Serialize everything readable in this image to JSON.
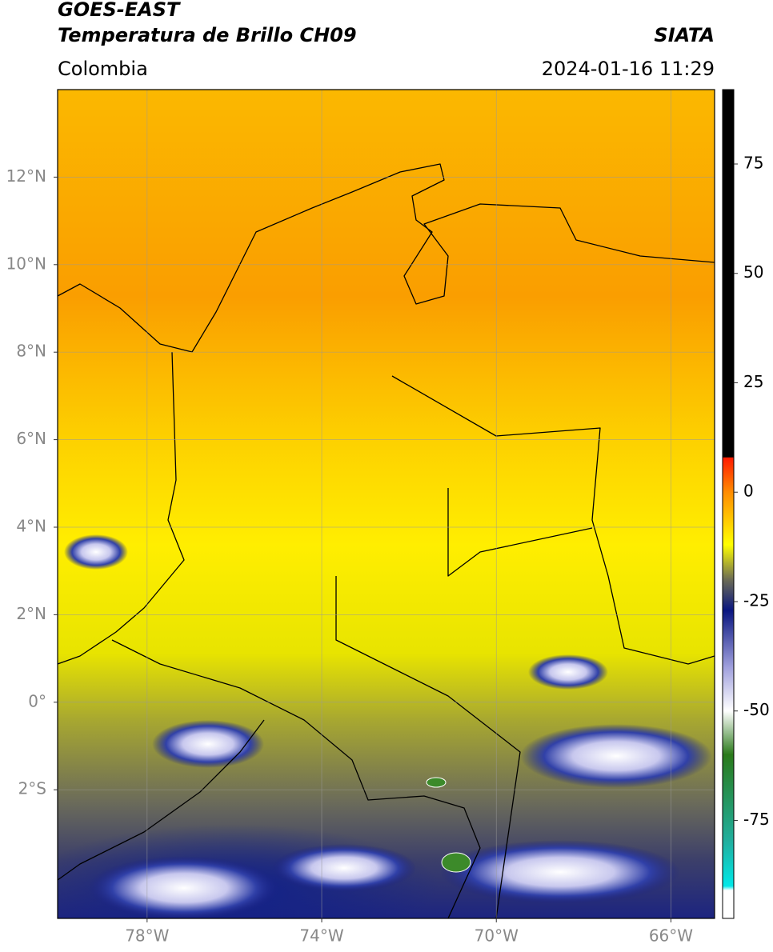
{
  "header": {
    "title": "GOES-EAST",
    "product": "Temperatura de Brillo CH09",
    "source": "SIATA",
    "region": "Colombia",
    "datetime": "2024-01-16 11:29"
  },
  "map": {
    "xlim": [
      -80.05,
      -65
    ],
    "ylim": [
      -4.94,
      14
    ],
    "xticks": [
      {
        "value": -78,
        "label": "78°W"
      },
      {
        "value": -74,
        "label": "74°W"
      },
      {
        "value": -70,
        "label": "70°W"
      },
      {
        "value": -66,
        "label": "66°W"
      }
    ],
    "yticks": [
      {
        "value": 12,
        "label": "12°N"
      },
      {
        "value": 10,
        "label": "10°N"
      },
      {
        "value": 8,
        "label": "8°N"
      },
      {
        "value": 6,
        "label": "6°N"
      },
      {
        "value": 4,
        "label": "4°N"
      },
      {
        "value": 2,
        "label": "2°N"
      },
      {
        "value": 0,
        "label": "0°"
      },
      {
        "value": -2,
        "label": "2°S"
      }
    ],
    "grid": true
  },
  "colorbar": {
    "lim": [
      -97.4,
      92
    ],
    "ticks": [
      75,
      50,
      25,
      0,
      -25,
      -50,
      -75
    ],
    "colormap": [
      {
        "value": 92,
        "color": "#000000"
      },
      {
        "value": 8,
        "color": "#000000"
      },
      {
        "value": 7.9,
        "color": "#ff1a00"
      },
      {
        "value": 0,
        "color": "#ff8c00"
      },
      {
        "value": -12,
        "color": "#ffff00"
      },
      {
        "value": -20,
        "color": "#6b6b55"
      },
      {
        "value": -27,
        "color": "#0a1680"
      },
      {
        "value": -40,
        "color": "#a0a0dd"
      },
      {
        "value": -50,
        "color": "#ffffff"
      },
      {
        "value": -60,
        "color": "#2a7a1a"
      },
      {
        "value": -80,
        "color": "#20b0a0"
      },
      {
        "value": -90,
        "color": "#00e8e8"
      },
      {
        "value": -91,
        "color": "#ffffff"
      },
      {
        "value": -97.4,
        "color": "#ffffff"
      }
    ]
  }
}
